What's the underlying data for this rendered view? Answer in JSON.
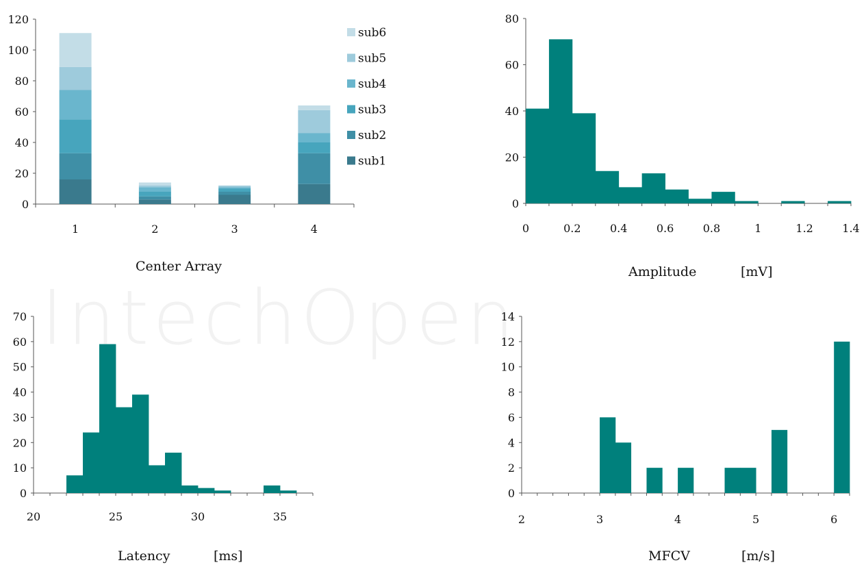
{
  "watermark": "IntechOpen",
  "colors": {
    "bar": "#00807c",
    "axis": "#555555",
    "sub1": "#3a7a8d",
    "sub2": "#3f8fa6",
    "sub3": "#47a5bd",
    "sub4": "#6ab6cd",
    "sub5": "#9ecbdc",
    "sub6": "#c3dde7"
  },
  "chart_data": [
    {
      "type": "bar",
      "stacked": true,
      "xlabel": "Center Array",
      "categories": [
        "1",
        "2",
        "3",
        "4"
      ],
      "ylim": [
        0,
        120
      ],
      "yticks": [
        "0",
        "20",
        "40",
        "60",
        "80",
        "100",
        "120"
      ],
      "legend_position": "top-right",
      "series": [
        {
          "name": "sub1",
          "values": [
            16,
            3,
            6,
            13
          ]
        },
        {
          "name": "sub2",
          "values": [
            17,
            2,
            2,
            20
          ]
        },
        {
          "name": "sub3",
          "values": [
            22,
            3,
            2,
            7
          ]
        },
        {
          "name": "sub4",
          "values": [
            19,
            3,
            1,
            6
          ]
        },
        {
          "name": "sub5",
          "values": [
            15,
            1,
            1,
            15
          ]
        },
        {
          "name": "sub6",
          "values": [
            22,
            2,
            0,
            3
          ]
        }
      ]
    },
    {
      "type": "bar",
      "histogram": true,
      "xlabel": "Amplitude",
      "xunit": "[mV]",
      "xlim": [
        0,
        1.4
      ],
      "xticks": [
        "0",
        "0.2",
        "0.4",
        "0.6",
        "0.8",
        "1",
        "1.2",
        "1.4"
      ],
      "ylim": [
        0,
        80
      ],
      "yticks": [
        "0",
        "20",
        "40",
        "60",
        "80"
      ],
      "bin_width": 0.1,
      "x": [
        0.0,
        0.1,
        0.2,
        0.3,
        0.4,
        0.5,
        0.6,
        0.7,
        0.8,
        0.9,
        1.0,
        1.1,
        1.2,
        1.3
      ],
      "values": [
        41,
        71,
        39,
        14,
        7,
        13,
        6,
        2,
        5,
        1,
        0,
        1,
        0,
        1
      ]
    },
    {
      "type": "bar",
      "histogram": true,
      "xlabel": "Latency",
      "xunit": "[ms]",
      "xlim": [
        20,
        37
      ],
      "xticks": [
        "20",
        "25",
        "30",
        "35"
      ],
      "ylim": [
        0,
        70
      ],
      "yticks": [
        "0",
        "10",
        "20",
        "30",
        "40",
        "50",
        "60",
        "70"
      ],
      "bin_width": 1,
      "x": [
        20,
        21,
        22,
        23,
        24,
        25,
        26,
        27,
        28,
        29,
        30,
        31,
        32,
        33,
        34,
        35,
        36
      ],
      "values": [
        0,
        0,
        7,
        24,
        59,
        34,
        39,
        11,
        16,
        3,
        2,
        1,
        0,
        0,
        3,
        1,
        0
      ]
    },
    {
      "type": "bar",
      "histogram": true,
      "xlabel": "MFCV",
      "xunit": "[m/s]",
      "xlim": [
        2,
        6.2
      ],
      "xticks": [
        "2",
        "3",
        "4",
        "5",
        "6"
      ],
      "ylim": [
        0,
        14
      ],
      "yticks": [
        "0",
        "2",
        "4",
        "6",
        "8",
        "10",
        "12",
        "14"
      ],
      "bin_width": 0.2,
      "x": [
        2.0,
        2.2,
        2.4,
        2.6,
        2.8,
        3.0,
        3.2,
        3.4,
        3.6,
        3.8,
        4.0,
        4.2,
        4.4,
        4.6,
        4.8,
        5.0,
        5.2,
        5.4,
        5.6,
        5.8,
        6.0
      ],
      "values": [
        0,
        0,
        0,
        0,
        0,
        6,
        4,
        0,
        2,
        0,
        2,
        0,
        0,
        2,
        2,
        0,
        5,
        0,
        0,
        0,
        12
      ]
    }
  ]
}
